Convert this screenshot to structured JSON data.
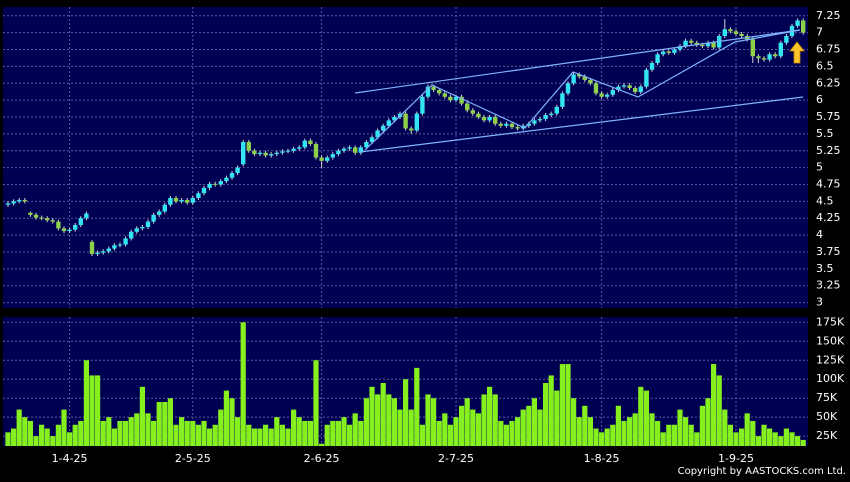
{
  "chart_data": [
    {
      "type": "candlestick",
      "up_color": "#33e4f2",
      "down_color": "#8fd04a",
      "grid": true,
      "open": [
        4.45,
        4.47,
        4.5,
        4.52,
        4.33,
        4.3,
        4.26,
        4.25,
        4.22,
        4.2,
        4.1,
        4.06,
        4.08,
        4.15,
        4.25,
        3.9,
        3.72,
        3.74,
        3.76,
        3.8,
        3.85,
        3.86,
        3.95,
        4.05,
        4.1,
        4.12,
        4.2,
        4.3,
        4.35,
        4.45,
        4.55,
        4.5,
        4.52,
        4.48,
        4.55,
        4.62,
        4.7,
        4.76,
        4.75,
        4.8,
        4.85,
        4.92,
        5.05,
        5.38,
        5.25,
        5.2,
        5.22,
        5.18,
        5.2,
        5.22,
        5.24,
        5.25,
        5.28,
        5.3,
        5.4,
        5.35,
        5.15,
        5.1,
        5.15,
        5.2,
        5.25,
        5.28,
        5.3,
        5.22,
        5.3,
        5.38,
        5.45,
        5.55,
        5.62,
        5.7,
        5.75,
        5.8,
        5.58,
        5.55,
        5.8,
        6.05,
        6.2,
        6.15,
        6.1,
        6.05,
        6.0,
        6.05,
        5.95,
        5.85,
        5.8,
        5.75,
        5.7,
        5.75,
        5.65,
        5.62,
        5.65,
        5.6,
        5.58,
        5.62,
        5.65,
        5.7,
        5.72,
        5.78,
        5.8,
        5.9,
        6.1,
        6.25,
        6.38,
        6.35,
        6.3,
        6.25,
        6.1,
        6.05,
        6.08,
        6.15,
        6.2,
        6.22,
        6.18,
        6.12,
        6.2,
        6.45,
        6.55,
        6.68,
        6.72,
        6.7,
        6.75,
        6.8,
        6.88,
        6.85,
        6.82,
        6.8,
        6.85,
        6.78,
        6.95,
        7.05,
        7.02,
        6.98,
        6.95,
        6.9,
        6.65,
        6.62,
        6.6,
        6.68,
        6.65,
        6.85,
        6.95,
        7.1,
        7.18
      ],
      "high": [
        4.5,
        4.53,
        4.55,
        4.55,
        4.35,
        4.33,
        4.29,
        4.28,
        4.25,
        4.23,
        4.13,
        4.11,
        4.18,
        4.28,
        4.35,
        3.93,
        3.77,
        3.79,
        3.83,
        3.88,
        3.89,
        3.98,
        4.08,
        4.13,
        4.15,
        4.23,
        4.33,
        4.38,
        4.48,
        4.58,
        4.58,
        4.55,
        4.55,
        4.58,
        4.65,
        4.73,
        4.79,
        4.79,
        4.83,
        4.88,
        4.95,
        5.03,
        5.41,
        5.41,
        5.28,
        5.25,
        5.25,
        5.23,
        5.25,
        5.27,
        5.28,
        5.31,
        5.33,
        5.43,
        5.43,
        5.38,
        5.18,
        5.18,
        5.23,
        5.28,
        5.31,
        5.33,
        5.33,
        5.33,
        5.41,
        5.48,
        5.58,
        5.65,
        5.73,
        5.78,
        5.83,
        5.83,
        5.61,
        5.83,
        6.08,
        6.23,
        6.23,
        6.18,
        6.13,
        6.08,
        6.08,
        6.08,
        5.98,
        5.88,
        5.83,
        5.78,
        5.78,
        5.78,
        5.68,
        5.68,
        5.68,
        5.63,
        5.65,
        5.68,
        5.73,
        5.75,
        5.81,
        5.83,
        5.93,
        6.13,
        6.28,
        6.41,
        6.41,
        6.38,
        6.33,
        6.28,
        6.13,
        6.11,
        6.18,
        6.23,
        6.25,
        6.25,
        6.21,
        6.23,
        6.48,
        6.58,
        6.71,
        6.75,
        6.75,
        6.78,
        6.83,
        6.91,
        6.91,
        6.88,
        6.85,
        6.88,
        6.88,
        6.98,
        7.2,
        7.08,
        7.05,
        7.01,
        6.98,
        6.93,
        6.68,
        6.65,
        6.71,
        6.71,
        6.88,
        6.98,
        7.13,
        7.21,
        7.21
      ],
      "low": [
        4.42,
        4.44,
        4.47,
        4.47,
        4.27,
        4.23,
        4.22,
        4.19,
        4.17,
        4.07,
        4.03,
        4.03,
        4.05,
        4.12,
        4.22,
        3.69,
        3.69,
        3.71,
        3.73,
        3.77,
        3.82,
        3.83,
        3.92,
        4.02,
        4.07,
        4.09,
        4.17,
        4.27,
        4.32,
        4.42,
        4.47,
        4.47,
        4.45,
        4.45,
        4.52,
        4.59,
        4.67,
        4.72,
        4.72,
        4.77,
        4.82,
        4.89,
        5.02,
        5.22,
        5.17,
        5.17,
        5.15,
        5.15,
        5.17,
        5.19,
        5.21,
        5.22,
        5.25,
        5.27,
        5.32,
        5.12,
        5.0,
        5.07,
        5.12,
        5.17,
        5.22,
        5.25,
        5.19,
        5.19,
        5.27,
        5.35,
        5.42,
        5.52,
        5.59,
        5.67,
        5.72,
        5.55,
        5.5,
        5.52,
        5.77,
        6.02,
        6.12,
        6.07,
        6.02,
        5.97,
        5.97,
        5.92,
        5.82,
        5.77,
        5.72,
        5.67,
        5.67,
        5.62,
        5.59,
        5.59,
        5.57,
        5.55,
        5.55,
        5.59,
        5.62,
        5.67,
        5.69,
        5.75,
        5.77,
        5.87,
        6.07,
        6.22,
        6.32,
        6.27,
        6.22,
        6.07,
        6.02,
        6.02,
        6.05,
        6.12,
        6.17,
        6.15,
        6.09,
        6.09,
        6.17,
        6.42,
        6.52,
        6.65,
        6.67,
        6.67,
        6.72,
        6.77,
        6.82,
        6.79,
        6.77,
        6.77,
        6.75,
        6.75,
        6.92,
        6.99,
        6.95,
        6.92,
        6.87,
        6.55,
        6.55,
        6.57,
        6.57,
        6.62,
        6.62,
        6.82,
        6.92,
        7.07,
        6.97
      ],
      "close": [
        4.47,
        4.5,
        4.52,
        4.5,
        4.3,
        4.26,
        4.25,
        4.22,
        4.2,
        4.1,
        4.06,
        4.08,
        4.15,
        4.25,
        4.32,
        3.72,
        3.74,
        3.76,
        3.8,
        3.85,
        3.86,
        3.95,
        4.05,
        4.1,
        4.12,
        4.2,
        4.3,
        4.35,
        4.45,
        4.55,
        4.5,
        4.52,
        4.48,
        4.55,
        4.62,
        4.7,
        4.76,
        4.75,
        4.8,
        4.85,
        4.92,
        5.0,
        5.38,
        5.25,
        5.2,
        5.22,
        5.18,
        5.2,
        5.22,
        5.24,
        5.25,
        5.28,
        5.3,
        5.4,
        5.35,
        5.15,
        5.1,
        5.15,
        5.2,
        5.25,
        5.28,
        5.3,
        5.22,
        5.3,
        5.38,
        5.45,
        5.55,
        5.62,
        5.7,
        5.75,
        5.8,
        5.58,
        5.55,
        5.8,
        6.05,
        6.2,
        6.15,
        6.1,
        6.05,
        6.0,
        6.05,
        5.95,
        5.85,
        5.8,
        5.75,
        5.7,
        5.75,
        5.65,
        5.62,
        5.65,
        5.6,
        5.58,
        5.62,
        5.65,
        5.7,
        5.72,
        5.78,
        5.8,
        5.9,
        6.1,
        6.25,
        6.38,
        6.35,
        6.3,
        6.25,
        6.1,
        6.05,
        6.08,
        6.15,
        6.2,
        6.22,
        6.18,
        6.12,
        6.2,
        6.45,
        6.55,
        6.68,
        6.72,
        6.7,
        6.75,
        6.8,
        6.88,
        6.85,
        6.82,
        6.8,
        6.85,
        6.78,
        6.95,
        7.05,
        7.02,
        6.98,
        6.95,
        6.9,
        6.65,
        6.62,
        6.6,
        6.68,
        6.65,
        6.85,
        6.95,
        7.1,
        7.18,
        7.0
      ],
      "ylim": [
        2.92,
        7.38
      ],
      "yticks": [
        3,
        3.25,
        3.5,
        3.75,
        4,
        4.25,
        4.5,
        4.75,
        5,
        5.25,
        5.5,
        5.75,
        6,
        6.25,
        6.5,
        6.75,
        7,
        7.25
      ]
    },
    {
      "type": "bar",
      "color": "#86f01e",
      "grid": true,
      "categories": [
        null,
        null,
        null,
        null,
        null,
        null,
        null,
        null,
        null,
        null,
        null,
        "1-4-25",
        null,
        null,
        null,
        null,
        null,
        null,
        null,
        null,
        null,
        null,
        null,
        null,
        null,
        null,
        null,
        null,
        null,
        null,
        null,
        null,
        null,
        "2-5-25",
        null,
        null,
        null,
        null,
        null,
        null,
        null,
        null,
        null,
        null,
        null,
        null,
        null,
        null,
        null,
        null,
        null,
        null,
        null,
        null,
        null,
        null,
        "2-6-25",
        null,
        null,
        null,
        null,
        null,
        null,
        null,
        null,
        null,
        null,
        null,
        null,
        null,
        null,
        null,
        null,
        null,
        null,
        null,
        null,
        null,
        null,
        null,
        "2-7-25",
        null,
        null,
        null,
        null,
        null,
        null,
        null,
        null,
        null,
        null,
        null,
        null,
        null,
        null,
        null,
        null,
        null,
        null,
        null,
        null,
        null,
        null,
        null,
        null,
        null,
        "1-8-25",
        null,
        null,
        null,
        null,
        null,
        null,
        null,
        null,
        null,
        null,
        null,
        null,
        null,
        null,
        null,
        null,
        null,
        null,
        null,
        null,
        null,
        null,
        null,
        "1-9-25",
        null,
        null,
        null,
        null,
        null,
        null,
        null,
        null,
        null,
        null,
        null,
        null
      ],
      "values": [
        30000,
        35000,
        60000,
        50000,
        45000,
        25000,
        40000,
        35000,
        25000,
        40000,
        60000,
        30000,
        40000,
        45000,
        125000,
        105000,
        105000,
        45000,
        50000,
        35000,
        45000,
        45000,
        50000,
        55000,
        90000,
        55000,
        45000,
        70000,
        70000,
        75000,
        40000,
        50000,
        45000,
        45000,
        40000,
        45000,
        35000,
        40000,
        60000,
        85000,
        75000,
        50000,
        175000,
        40000,
        35000,
        35000,
        40000,
        35000,
        50000,
        40000,
        35000,
        60000,
        50000,
        45000,
        45000,
        125000,
        15000,
        40000,
        45000,
        45000,
        50000,
        40000,
        55000,
        45000,
        75000,
        90000,
        80000,
        95000,
        80000,
        75000,
        60000,
        100000,
        60000,
        115000,
        40000,
        80000,
        75000,
        45000,
        55000,
        40000,
        50000,
        65000,
        75000,
        60000,
        55000,
        80000,
        90000,
        80000,
        45000,
        40000,
        45000,
        50000,
        60000,
        65000,
        75000,
        60000,
        95000,
        105000,
        85000,
        120000,
        120000,
        75000,
        50000,
        65000,
        50000,
        35000,
        30000,
        35000,
        40000,
        65000,
        45000,
        50000,
        55000,
        90000,
        85000,
        55000,
        45000,
        30000,
        40000,
        40000,
        60000,
        50000,
        40000,
        30000,
        65000,
        75000,
        120000,
        105000,
        60000,
        40000,
        30000,
        35000,
        55000,
        45000,
        25000,
        40000,
        35000,
        30000,
        25000,
        35000,
        30000,
        25000,
        20000
      ],
      "ylim": [
        12000,
        182000
      ],
      "yticks": [
        {
          "value": 25000,
          "label": "25K"
        },
        {
          "value": 50000,
          "label": "50K"
        },
        {
          "value": 75000,
          "label": "75K"
        },
        {
          "value": 100000,
          "label": "100K"
        },
        {
          "value": 125000,
          "label": "125K"
        },
        {
          "value": 150000,
          "label": "150K"
        },
        {
          "value": 175000,
          "label": "175K"
        }
      ]
    }
  ],
  "footer": {
    "copyright": "Copyright by AASTOCKS.com Ltd."
  }
}
